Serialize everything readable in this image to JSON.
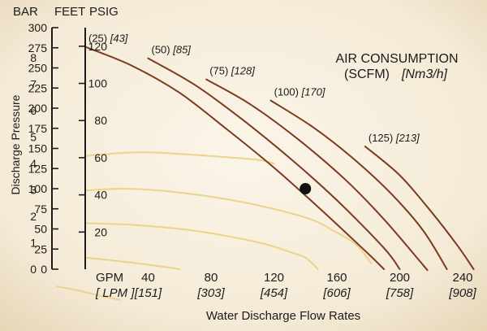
{
  "chart_data": {
    "type": "line",
    "xlabel": "Water Discharge Flow Rates",
    "ylabel": "Discharge Pressure",
    "axes": {
      "bar_header": "BAR",
      "feet_header": "FEET",
      "psig_header": "PSIG",
      "bar_ticks": [
        "0",
        "1",
        "2",
        "3",
        "4",
        "5",
        "6",
        "7",
        "8"
      ],
      "feet_ticks": [
        "0",
        "25",
        "50",
        "75",
        "100",
        "125",
        "150",
        "175",
        "200",
        "225",
        "250",
        "275",
        "300"
      ],
      "psig_ticks": [
        "20",
        "40",
        "60",
        "80",
        "100",
        "120"
      ],
      "x_unit_gpm": "GPM",
      "x_unit_lpm": "[ LPM ]",
      "gpm_ticks": [
        "40",
        "80",
        "120",
        "160",
        "200",
        "240"
      ],
      "lpm_ticks": [
        "[151]",
        "[303]",
        "[454]",
        "[606]",
        "[758]",
        "[908]"
      ]
    },
    "xlim": [
      0,
      240
    ],
    "ylim": [
      0,
      126
    ],
    "legend": {
      "title_line1": "AIR CONSUMPTION",
      "title_line2": "(SCFM)",
      "title_unit": "[Nm3/h]"
    },
    "air_curves": [
      {
        "scfm": "(25)",
        "nm3h": "[43]",
        "points": [
          [
            0,
            116
          ],
          [
            30,
            106
          ],
          [
            60,
            92
          ],
          [
            90,
            73
          ],
          [
            120,
            53
          ],
          [
            150,
            31
          ],
          [
            180,
            8
          ],
          [
            190,
            0
          ]
        ]
      },
      {
        "scfm": "(50)",
        "nm3h": "[85]",
        "points": [
          [
            40,
            110
          ],
          [
            70,
            96
          ],
          [
            100,
            78
          ],
          [
            130,
            58
          ],
          [
            160,
            36
          ],
          [
            190,
            11
          ],
          [
            200,
            0
          ]
        ]
      },
      {
        "scfm": "(75)",
        "nm3h": "[128]",
        "points": [
          [
            77,
            99
          ],
          [
            105,
            86
          ],
          [
            135,
            68
          ],
          [
            165,
            47
          ],
          [
            190,
            26
          ],
          [
            215,
            2
          ],
          [
            217,
            0
          ]
        ]
      },
      {
        "scfm": "(100)",
        "nm3h": "[170]",
        "points": [
          [
            118,
            88
          ],
          [
            145,
            74
          ],
          [
            170,
            58
          ],
          [
            195,
            39
          ],
          [
            215,
            20
          ],
          [
            230,
            0
          ]
        ]
      },
      {
        "scfm": "(125)",
        "nm3h": "[213]",
        "points": [
          [
            178,
            64
          ],
          [
            200,
            49
          ],
          [
            220,
            30
          ],
          [
            237,
            12
          ],
          [
            247,
            0
          ]
        ]
      }
    ],
    "pressure_curves": [
      {
        "psig": 20,
        "points": [
          [
            0,
            59
          ],
          [
            12,
            60
          ],
          [
            40,
            61
          ],
          [
            80,
            59
          ],
          [
            110,
            57
          ],
          [
            120,
            55
          ]
        ]
      },
      {
        "psig": 40,
        "points": [
          [
            0,
            41
          ],
          [
            26,
            42
          ],
          [
            60,
            40
          ],
          [
            100,
            35
          ],
          [
            140,
            27
          ],
          [
            158,
            20
          ],
          [
            172,
            13
          ],
          [
            182,
            3
          ]
        ]
      },
      {
        "psig": 60,
        "points": [
          [
            0,
            24
          ],
          [
            32,
            23
          ],
          [
            70,
            20
          ],
          [
            110,
            14
          ],
          [
            130,
            9
          ],
          [
            140,
            6
          ],
          [
            148,
            0
          ]
        ]
      },
      {
        "psig": 80,
        "points": [
          [
            0,
            6
          ],
          [
            24,
            4
          ],
          [
            52,
            1
          ],
          [
            60,
            0
          ]
        ]
      },
      {
        "psig": 100,
        "points": [
          [
            -18,
            -9
          ],
          [
            -5,
            -11
          ],
          [
            10,
            -14
          ],
          [
            22,
            -16
          ]
        ]
      }
    ],
    "operating_point": {
      "x": 140,
      "y": 42
    }
  }
}
